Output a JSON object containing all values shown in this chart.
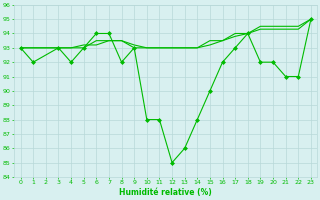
{
  "line1": {
    "x": [
      0,
      1,
      3,
      4,
      5,
      6,
      7,
      8,
      9,
      10,
      11,
      12,
      13,
      14,
      15,
      16,
      17,
      18,
      19,
      20,
      21,
      22,
      23
    ],
    "y": [
      93,
      92,
      93,
      92,
      93,
      94,
      94,
      92,
      93,
      88,
      88,
      85,
      86,
      88,
      90,
      92,
      93,
      94,
      92,
      92,
      91,
      91,
      95
    ]
  },
  "line2": {
    "x": [
      0,
      3,
      4,
      5,
      6,
      7,
      8,
      9,
      10,
      11,
      12,
      13,
      14,
      15,
      16,
      17,
      18,
      19,
      20,
      21,
      22,
      23
    ],
    "y": [
      93,
      93,
      93,
      93,
      93.5,
      93.5,
      93.5,
      93,
      93,
      93,
      93,
      93,
      93,
      93.5,
      93.5,
      94,
      94,
      94.5,
      94.5,
      94.5,
      94.5,
      95
    ]
  },
  "line3": {
    "x": [
      0,
      3,
      4,
      5,
      6,
      7,
      8,
      9,
      10,
      11,
      12,
      13,
      14,
      15,
      16,
      17,
      18,
      19,
      20,
      21,
      22,
      23
    ],
    "y": [
      93,
      93,
      93,
      93.2,
      93.2,
      93.5,
      93.5,
      93.2,
      93,
      93,
      93,
      93,
      93,
      93.2,
      93.5,
      93.8,
      94,
      94.3,
      94.3,
      94.3,
      94.3,
      95
    ]
  },
  "line_color": "#00bb00",
  "bg_color": "#d8f0f0",
  "grid_color": "#b8d8d8",
  "xlabel": "Humidité relative (%)",
  "ylim": [
    84,
    96
  ],
  "xlim": [
    -0.5,
    23.5
  ],
  "yticks": [
    84,
    85,
    86,
    87,
    88,
    89,
    90,
    91,
    92,
    93,
    94,
    95,
    96
  ],
  "xticks": [
    0,
    1,
    2,
    3,
    4,
    5,
    6,
    7,
    8,
    9,
    10,
    11,
    12,
    13,
    14,
    15,
    16,
    17,
    18,
    19,
    20,
    21,
    22,
    23
  ]
}
